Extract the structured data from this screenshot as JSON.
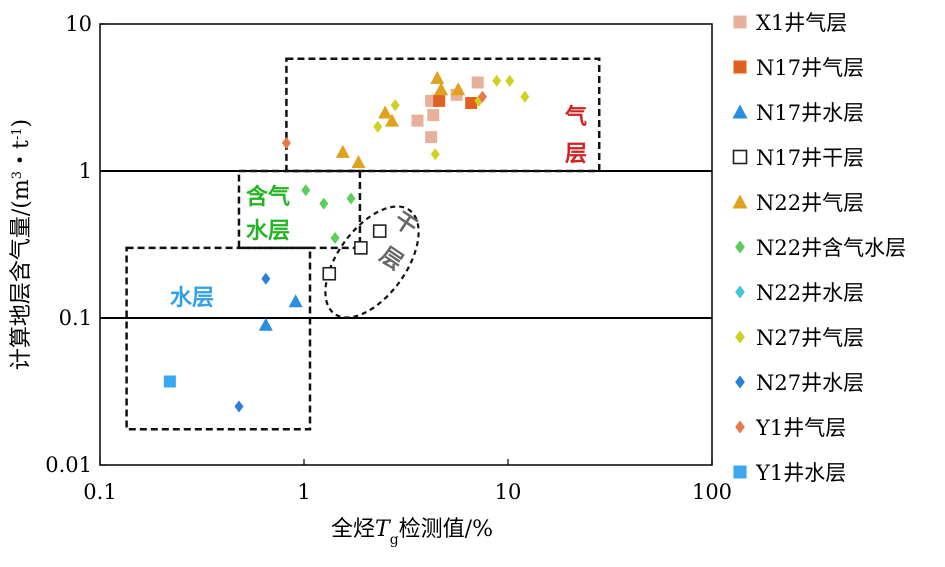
{
  "chart_data": {
    "type": "scatter",
    "x_scale": "log",
    "y_scale": "log",
    "xlim": [
      0.1,
      100
    ],
    "ylim": [
      0.01,
      10
    ],
    "xlabel_parts": [
      "全烃",
      "T",
      "g",
      "检测值/%"
    ],
    "ylabel_parts": [
      "计算地层含气量/(m",
      "3",
      "・t",
      "-1",
      ")"
    ],
    "x_ticks": [
      {
        "v": 0.1,
        "label": "0.1"
      },
      {
        "v": 1,
        "label": "1"
      },
      {
        "v": 10,
        "label": "10"
      },
      {
        "v": 100,
        "label": "100"
      }
    ],
    "y_ticks": [
      {
        "v": 0.01,
        "label": "0.01"
      },
      {
        "v": 0.1,
        "label": "0.1"
      },
      {
        "v": 1,
        "label": "1"
      },
      {
        "v": 10,
        "label": "10"
      }
    ],
    "hlines": [
      0.1,
      1
    ],
    "legend_position": "right",
    "series": [
      {
        "name": "X1井气层",
        "marker": "square",
        "color": "#e8b09a",
        "points": [
          [
            4.2,
            3.0
          ],
          [
            4.3,
            2.4
          ],
          [
            3.6,
            2.2
          ],
          [
            4.2,
            1.7
          ],
          [
            5.6,
            3.3
          ],
          [
            7.1,
            4.0
          ]
        ]
      },
      {
        "name": "N17井气层",
        "marker": "square",
        "color": "#e06020",
        "points": [
          [
            4.6,
            3.0
          ],
          [
            6.6,
            2.9
          ]
        ]
      },
      {
        "name": "N17井水层",
        "marker": "triangle",
        "color": "#2a8ee0",
        "points": [
          [
            0.91,
            0.13
          ],
          [
            0.65,
            0.09
          ]
        ]
      },
      {
        "name": "N17井干层",
        "marker": "square-open",
        "color": "#222222",
        "points": [
          [
            1.33,
            0.2
          ],
          [
            1.9,
            0.3
          ],
          [
            2.35,
            0.39
          ]
        ]
      },
      {
        "name": "N22井气层",
        "marker": "triangle",
        "color": "#e0a020",
        "points": [
          [
            4.5,
            4.3
          ],
          [
            4.7,
            3.6
          ],
          [
            5.7,
            3.6
          ],
          [
            2.5,
            2.5
          ],
          [
            2.7,
            2.2
          ],
          [
            1.55,
            1.35
          ],
          [
            1.85,
            1.15
          ]
        ]
      },
      {
        "name": "N22井含气水层",
        "marker": "diamond",
        "color": "#5ad05a",
        "points": [
          [
            1.02,
            0.74
          ],
          [
            1.25,
            0.6
          ],
          [
            1.7,
            0.65
          ],
          [
            1.42,
            0.35
          ]
        ]
      },
      {
        "name": "N22井水层",
        "marker": "diamond",
        "color": "#40c8d8",
        "points": []
      },
      {
        "name": "N27井气层",
        "marker": "diamond",
        "color": "#d0d020",
        "points": [
          [
            2.3,
            2.0
          ],
          [
            2.8,
            2.8
          ],
          [
            4.4,
            1.3
          ],
          [
            7.2,
            3.0
          ],
          [
            8.8,
            4.1
          ],
          [
            10.2,
            4.1
          ],
          [
            12.1,
            3.2
          ]
        ]
      },
      {
        "name": "N27井水层",
        "marker": "diamond",
        "color": "#2a7ee0",
        "points": [
          [
            0.65,
            0.185
          ],
          [
            0.48,
            0.025
          ]
        ]
      },
      {
        "name": "Y1井气层",
        "marker": "diamond",
        "color": "#e87a4a",
        "points": [
          [
            0.82,
            1.55
          ],
          [
            7.5,
            3.2
          ]
        ]
      },
      {
        "name": "Y1井水层",
        "marker": "square",
        "color": "#3aa8f0",
        "points": [
          [
            0.22,
            0.037
          ]
        ]
      }
    ],
    "zones": [
      {
        "label_lines": [
          "气",
          "层"
        ],
        "color": "#d02020"
      },
      {
        "label_lines": [
          "含气",
          "水层"
        ],
        "color": "#22b422"
      },
      {
        "label_lines": [
          "水层"
        ],
        "color": "#30a0e8"
      },
      {
        "label_lines": [
          "干",
          "层"
        ],
        "color": "#666666"
      }
    ]
  }
}
